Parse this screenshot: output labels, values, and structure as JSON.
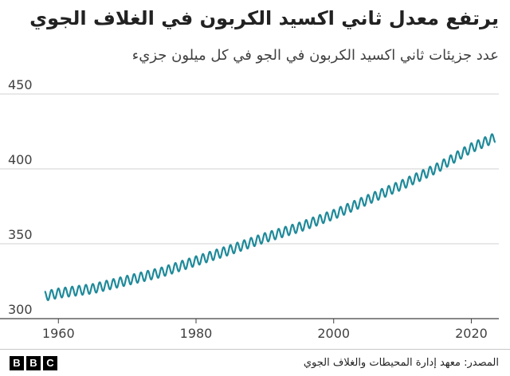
{
  "title": "يرتفع معدل ثاني اكسيد الكربون في الغلاف الجوي",
  "subtitle": "عدد جزيئات ثاني اكسيد الكربون في الجو في كل ميلون جزيء",
  "source": "المصدر: معهد إدارة المحيطات والغلاف الجوي",
  "logo": [
    "B",
    "B",
    "C"
  ],
  "colors": {
    "line": "#1f8a9a",
    "grid": "#d0d0d0",
    "axis": "#404040"
  },
  "chart_data": {
    "type": "line",
    "title": "يرتفع معدل ثاني اكسيد الكربون في الغلاف الجوي",
    "subtitle": "عدد جزيئات ثاني اكسيد الكربون في الجو في كل ميلون جزيء",
    "xlim": [
      1958,
      2024
    ],
    "ylim": [
      300,
      455
    ],
    "x_ticks": [
      1960,
      1980,
      2000,
      2020
    ],
    "x_tick_labels": [
      "1960",
      "1980",
      "2000",
      "2020"
    ],
    "y_ticks": [
      300,
      350,
      400,
      450
    ],
    "y_tick_labels": [
      "300",
      "350",
      "400",
      "450"
    ],
    "grid": "horizontal",
    "seasonal_amplitude": 3.2,
    "series": [
      {
        "x": [
          1958,
          1960,
          1965,
          1970,
          1975,
          1980,
          1985,
          1990,
          1995,
          2000,
          2005,
          2010,
          2015,
          2020,
          2023.5
        ],
        "values": [
          315,
          317,
          320,
          325.5,
          331,
          338.5,
          346,
          354,
          361,
          369.5,
          379.5,
          389.5,
          400.5,
          414,
          421
        ]
      }
    ]
  }
}
